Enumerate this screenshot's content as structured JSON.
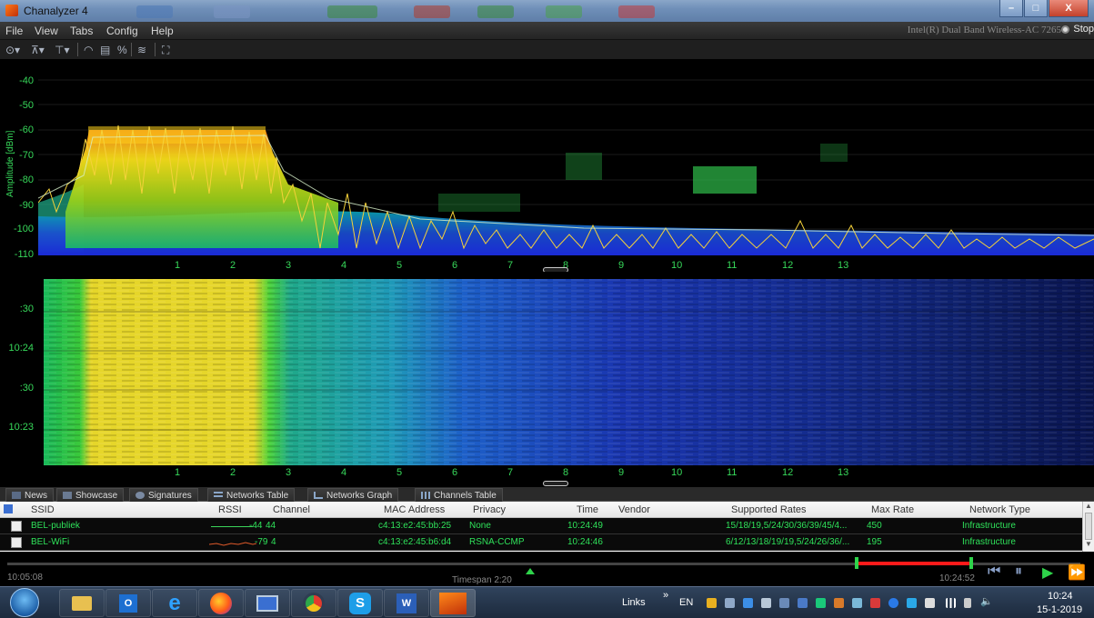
{
  "window": {
    "title": "Chanalyzer 4",
    "min": "–",
    "max": "□",
    "close": "X"
  },
  "menu": {
    "items": [
      "File",
      "View",
      "Tabs",
      "Config",
      "Help"
    ],
    "adapter": "Intel(R) Dual Band Wireless-AC 7265",
    "stop_label": "Stop"
  },
  "spectrum": {
    "ylabel": "Amplitude [dBm]",
    "y_ticks": [
      "-40",
      "-50",
      "-60",
      "-70",
      "-80",
      "-90",
      "-100",
      "-110"
    ],
    "channels": [
      "1",
      "2",
      "3",
      "4",
      "5",
      "6",
      "7",
      "8",
      "9",
      "10",
      "11",
      "12",
      "13"
    ]
  },
  "waterfall": {
    "time_ticks": [
      ":30",
      "10:24",
      ":30",
      "10:23"
    ]
  },
  "tabs": [
    {
      "label": "News",
      "icon": "news-icon"
    },
    {
      "label": "Showcase",
      "icon": "showcase-icon"
    },
    {
      "label": "Signatures",
      "icon": "signatures-icon"
    },
    {
      "label": "Networks Table",
      "icon": "table-icon",
      "active": true
    },
    {
      "label": "Networks Graph",
      "icon": "graph-icon"
    },
    {
      "label": "Channels Table",
      "icon": "channels-icon"
    }
  ],
  "table": {
    "columns": [
      "SSID",
      "RSSI",
      "Channel",
      "MAC Address",
      "Privacy",
      "Time",
      "Vendor",
      "Supported Rates",
      "Max Rate",
      "Network Type"
    ],
    "rows": [
      {
        "ssid": "BEL-publiek",
        "rssi": "-44",
        "channel": "44",
        "mac": "c4:13:e2:45:bb:25",
        "privacy": "None",
        "time": "10:24:49",
        "vendor": "",
        "rates": "15/18/19,5/24/30/36/39/45/4...",
        "max_rate": "450",
        "type": "Infrastructure",
        "spark": "#3bd35a"
      },
      {
        "ssid": "BEL-WiFi",
        "rssi": "-79",
        "channel": "4",
        "mac": "c4:13:e2:45:b6:d4",
        "privacy": "RSNA-CCMP",
        "time": "10:24:46",
        "vendor": "",
        "rates": "6/12/13/18/19/19,5/24/26/36/...",
        "max_rate": "195",
        "type": "Infrastructure",
        "spark": "#e05a2a"
      }
    ]
  },
  "timeline": {
    "start": "10:05:08",
    "end": "10:24:52",
    "timespan": "Timespan 2:20"
  },
  "taskbar": {
    "apps": [
      "file-explorer",
      "outlook",
      "internet-explorer",
      "firefox",
      "remote-desktop",
      "chrome",
      "skype",
      "word",
      "chanalyzer"
    ],
    "links": "Links",
    "chevron": "»",
    "lang": "EN",
    "time": "10:24",
    "date": "15-1-2019"
  }
}
